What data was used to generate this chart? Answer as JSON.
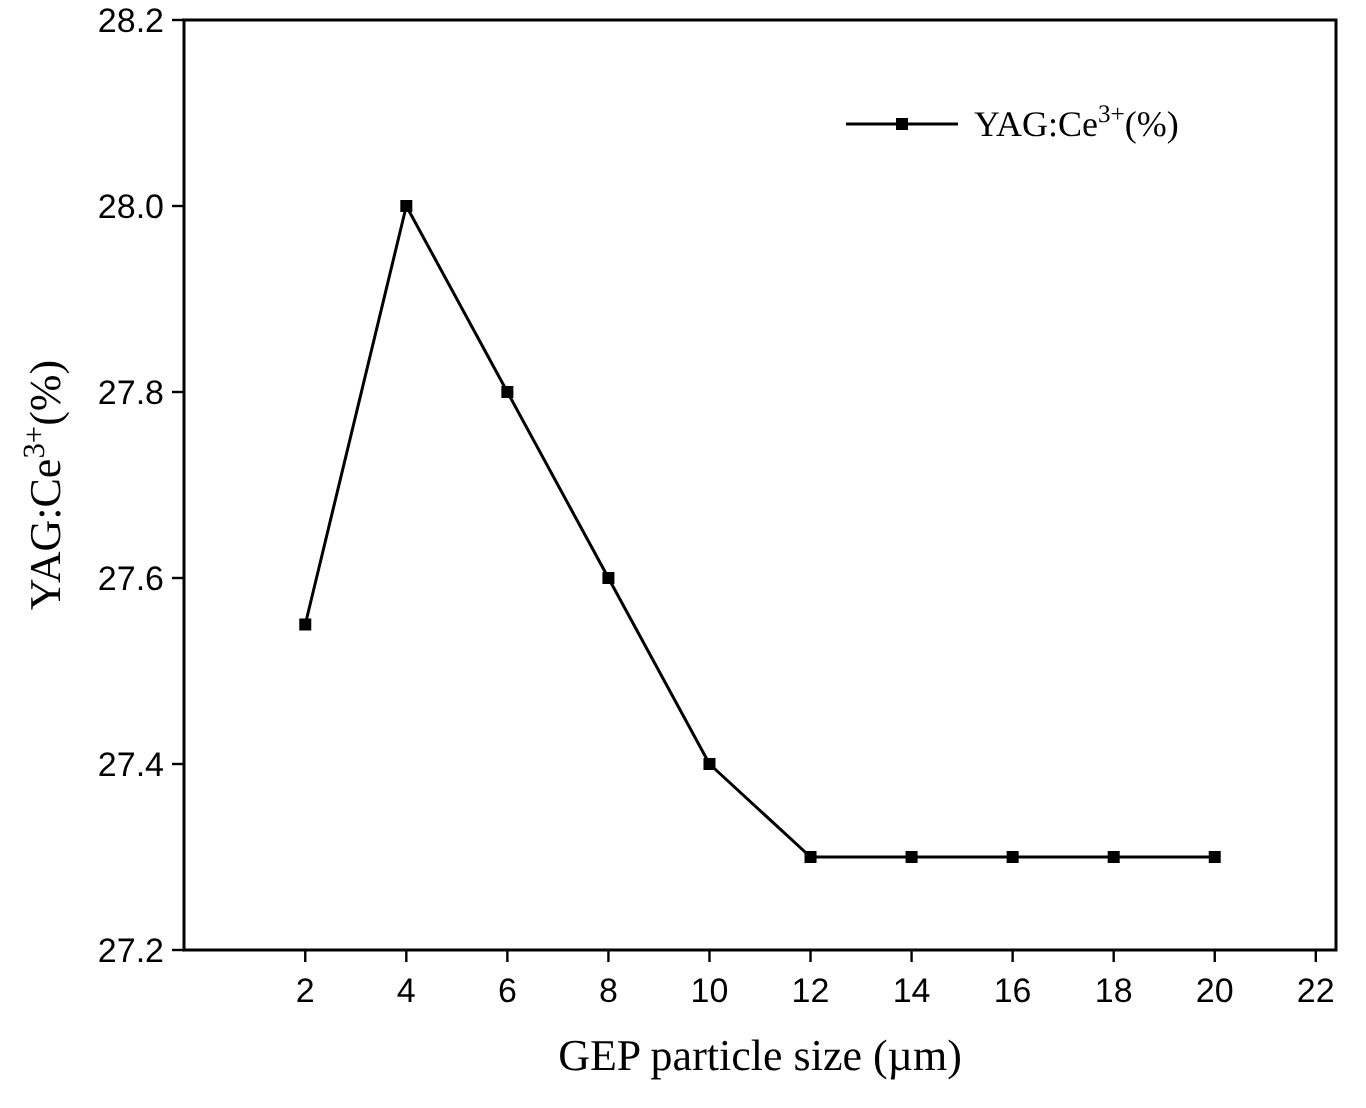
{
  "chart_data": {
    "type": "line",
    "xlabel": "GEP particle size (µm)",
    "ylabel": "YAG:Ce$^{3+}$(%)",
    "x": [
      2,
      4,
      6,
      8,
      10,
      12,
      14,
      16,
      18,
      20
    ],
    "series": [
      {
        "name": "YAG:Ce$^{3+}$(%)",
        "color": "#000000",
        "values": [
          27.55,
          28.0,
          27.8,
          27.6,
          27.4,
          27.3,
          27.3,
          27.3,
          27.3,
          27.3
        ]
      }
    ],
    "xlim": [
      -0.4,
      22.4
    ],
    "xticks": [
      2,
      4,
      6,
      8,
      10,
      12,
      14,
      16,
      18,
      20,
      22
    ],
    "ylim": [
      27.2,
      28.2
    ],
    "yticks": [
      27.2,
      27.4,
      27.6,
      27.8,
      {
        "value": 28.0,
        "label": "28.0"
      },
      28.2
    ],
    "marker": "square",
    "line_style": "solid",
    "legend": "top right",
    "grid": false
  }
}
